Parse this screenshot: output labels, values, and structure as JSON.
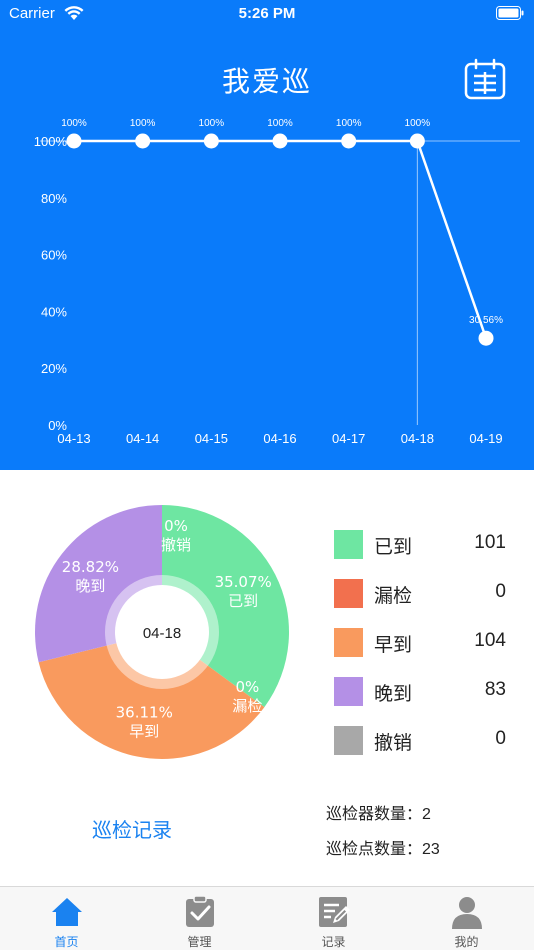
{
  "status_bar": {
    "carrier": "Carrier",
    "time": "5:26 PM"
  },
  "header": {
    "title": "我爱巡",
    "calendar_icon": "calendar-icon"
  },
  "chart_data": [
    {
      "type": "line",
      "x": [
        "04-13",
        "04-14",
        "04-15",
        "04-16",
        "04-17",
        "04-18",
        "04-19"
      ],
      "series": [
        {
          "values": [
            100,
            100,
            100,
            100,
            100,
            100,
            30.56
          ],
          "labels": [
            "100%",
            "100%",
            "100%",
            "100%",
            "100%",
            "100%",
            "30.56%"
          ]
        }
      ],
      "y_ticks": [
        "0%",
        "20%",
        "40%",
        "60%",
        "80%",
        "100%"
      ],
      "ylim": [
        0,
        100
      ],
      "highlight_x": "04-18",
      "colors": {
        "line": "#ffffff",
        "background": "#0a7bfa"
      }
    },
    {
      "type": "pie",
      "center_label": "04-18",
      "slices": [
        {
          "name": "已到",
          "percent": "35.07%",
          "value": 35.07,
          "color": "#6ee6a2"
        },
        {
          "name": "漏检",
          "percent": "0%",
          "value": 0,
          "color": "#f2704e"
        },
        {
          "name": "早到",
          "percent": "36.11%",
          "value": 36.11,
          "color": "#f99a5e"
        },
        {
          "name": "晚到",
          "percent": "28.82%",
          "value": 28.82,
          "color": "#b490e6"
        },
        {
          "name": "撤销",
          "percent": "0%",
          "value": 0,
          "color": "#a8a8a8"
        }
      ]
    }
  ],
  "legend": [
    {
      "label": "已到",
      "count": "101",
      "color": "#6ee6a2"
    },
    {
      "label": "漏检",
      "count": "0",
      "color": "#f2704e"
    },
    {
      "label": "早到",
      "count": "104",
      "color": "#f99a5e"
    },
    {
      "label": "晚到",
      "count": "83",
      "color": "#b490e6"
    },
    {
      "label": "撤销",
      "count": "0",
      "color": "#a8a8a8"
    }
  ],
  "record_link": "巡检记录",
  "stats": {
    "devices_label": "巡检器数量：",
    "devices_value": "2",
    "points_label": "巡检点数量：",
    "points_value": "23"
  },
  "tabbar": [
    {
      "label": "首页",
      "icon": "home-icon",
      "active": true
    },
    {
      "label": "管理",
      "icon": "clipboard-check-icon",
      "active": false
    },
    {
      "label": "记录",
      "icon": "edit-note-icon",
      "active": false
    },
    {
      "label": "我的",
      "icon": "user-icon",
      "active": false
    }
  ]
}
